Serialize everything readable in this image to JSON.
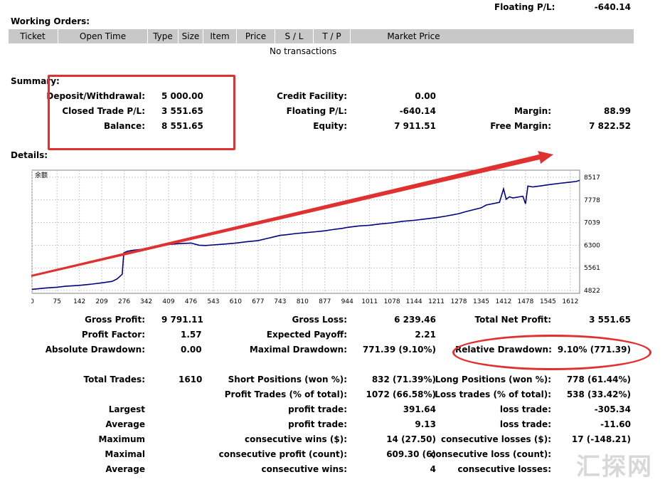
{
  "top": {
    "floating_label": "Floating P/L:",
    "floating_value": "-640.14"
  },
  "working_orders": {
    "title": "Working Orders:",
    "columns": [
      "Ticket",
      "Open Time",
      "Type",
      "Size",
      "Item",
      "Price",
      "S / L",
      "T / P",
      "Market Price"
    ],
    "empty_text": "No transactions"
  },
  "summary": {
    "title": "Summary:",
    "deposit_label": "Deposit/Withdrawal:",
    "deposit_value": "5 000.00",
    "closed_pl_label": "Closed Trade P/L:",
    "closed_pl_value": "3 551.65",
    "balance_label": "Balance:",
    "balance_value": "8 551.65",
    "credit_label": "Credit Facility:",
    "credit_value": "0.00",
    "floating_label": "Floating P/L:",
    "floating_value": "-640.14",
    "equity_label": "Equity:",
    "equity_value": "7 911.51",
    "margin_label": "Margin:",
    "margin_value": "88.99",
    "free_margin_label": "Free Margin:",
    "free_margin_value": "7 822.52"
  },
  "details": {
    "title": "Details:"
  },
  "chart_data": {
    "type": "line",
    "title": "余额",
    "x_ticks": [
      "0",
      "75",
      "142",
      "209",
      "276",
      "342",
      "409",
      "476",
      "543",
      "610",
      "677",
      "743",
      "810",
      "877",
      "944",
      "1011",
      "1078",
      "1144",
      "1211",
      "1278",
      "1345",
      "1412",
      "1478",
      "1545",
      "1612"
    ],
    "y_ticks": [
      "8517",
      "7778",
      "7039",
      "6300",
      "5561",
      "4822"
    ],
    "xlim": [
      0,
      1640
    ],
    "ylim": [
      4822,
      8517
    ],
    "grid": true,
    "series": [
      {
        "x": [
          0,
          40,
          75,
          100,
          142,
          180,
          209,
          240,
          255,
          270,
          275,
          285,
          300,
          330,
          342,
          360,
          380,
          400,
          409,
          440,
          476,
          500,
          520,
          543,
          580,
          610,
          640,
          677,
          700,
          720,
          743,
          760,
          790,
          810,
          850,
          877,
          900,
          930,
          944,
          980,
          1011,
          1040,
          1078,
          1110,
          1144,
          1180,
          1211,
          1240,
          1278,
          1300,
          1345,
          1360,
          1400,
          1412,
          1420,
          1430,
          1440,
          1470,
          1478,
          1485,
          1500,
          1545,
          1580,
          1612,
          1630,
          1640
        ],
        "y": [
          4860,
          4900,
          4930,
          4960,
          4990,
          5030,
          5070,
          5120,
          5200,
          5350,
          6050,
          6100,
          6130,
          6170,
          6200,
          6230,
          6270,
          6300,
          6320,
          6350,
          6370,
          6300,
          6290,
          6310,
          6340,
          6370,
          6410,
          6450,
          6510,
          6560,
          6620,
          6640,
          6680,
          6700,
          6740,
          6770,
          6810,
          6850,
          6880,
          6930,
          6950,
          6990,
          7030,
          7080,
          7110,
          7160,
          7200,
          7250,
          7330,
          7400,
          7520,
          7610,
          7700,
          8140,
          7800,
          7880,
          7840,
          7900,
          7650,
          8230,
          8200,
          8270,
          8320,
          8360,
          8380,
          8420
        ],
        "color": "#000080"
      }
    ]
  },
  "stats": {
    "gross_profit_label": "Gross Profit:",
    "gross_profit_value": "9 791.11",
    "gross_loss_label": "Gross Loss:",
    "gross_loss_value": "6 239.46",
    "total_net_label": "Total Net Profit:",
    "total_net_value": "3 551.65",
    "profit_factor_label": "Profit Factor:",
    "profit_factor_value": "1.57",
    "expected_payoff_label": "Expected Payoff:",
    "expected_payoff_value": "2.21",
    "abs_dd_label": "Absolute Drawdown:",
    "abs_dd_value": "0.00",
    "max_dd_label": "Maximal Drawdown:",
    "max_dd_value": "771.39 (9.10%)",
    "rel_dd_label": "Relative Drawdown:",
    "rel_dd_value": "9.10% (771.39)",
    "total_trades_label": "Total Trades:",
    "total_trades_value": "1610",
    "short_label": "Short Positions (won %):",
    "short_value": "832 (71.39%)",
    "long_label": "Long Positions (won %):",
    "long_value": "778 (61.44%)",
    "profit_trades_label": "Profit Trades (% of total):",
    "profit_trades_value": "1072 (66.58%)",
    "loss_trades_label": "Loss trades (% of total):",
    "loss_trades_value": "538 (33.42%)",
    "largest_label": "Largest",
    "largest_profit_label": "profit trade:",
    "largest_profit_value": "391.64",
    "largest_loss_label": "loss trade:",
    "largest_loss_value": "-305.34",
    "average_label": "Average",
    "average_profit_label": "profit trade:",
    "average_profit_value": "9.13",
    "average_loss_label": "loss trade:",
    "average_loss_value": "-11.60",
    "maximum_label": "Maximum",
    "max_wins_label": "consecutive wins ($):",
    "max_wins_value": "14 (27.50)",
    "max_losses_label": "consecutive losses ($):",
    "max_losses_value": "17 (-148.21)",
    "maximal_label": "Maximal",
    "maximal_profit_label": "consecutive profit (count):",
    "maximal_profit_value": "609.30 (6)",
    "maximal_loss_label": "consecutive loss (count):",
    "average2_label": "Average",
    "avg_cons_wins_label": "consecutive wins:",
    "avg_cons_wins_value": "4",
    "avg_cons_losses_label": "consecutive losses:"
  },
  "watermark": {
    "text": "汇探网"
  },
  "annotation_color": "#e03030"
}
